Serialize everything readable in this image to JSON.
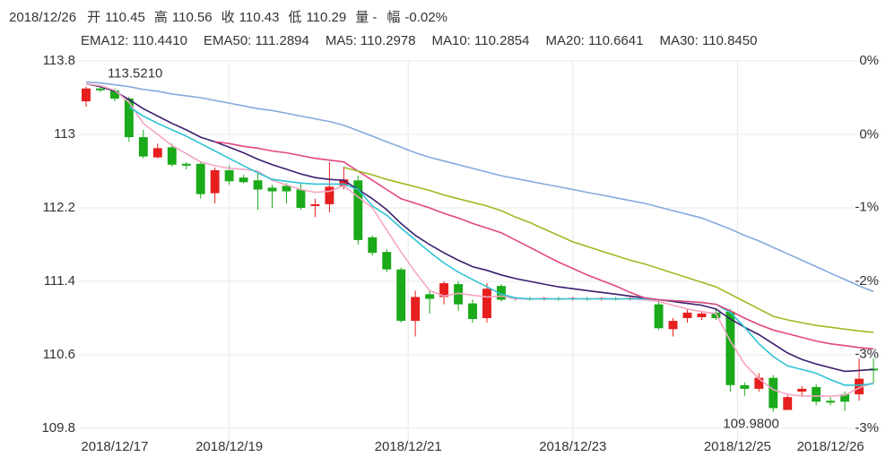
{
  "chart_data": {
    "type": "candlestick",
    "date": "2018/12/26",
    "quote": [
      {
        "label": "开",
        "value": 110.45,
        "color": "#333333"
      },
      {
        "label": "高",
        "value": 110.56,
        "color": "#e61e1e"
      },
      {
        "label": "收",
        "value": 110.43,
        "color": "#1aaa1a"
      },
      {
        "label": "低",
        "value": 110.29,
        "color": "#1aaa1a"
      },
      {
        "label": "量 -"
      },
      {
        "label": "幅",
        "value": {
          "value": -0.02,
          "label": "-0.02%"
        },
        "color": "#1aaa1a"
      }
    ],
    "up_color": "#e61e1e",
    "down_color": "#1aaa1a",
    "xlim": [
      -0.5,
      55.5
    ],
    "xticks": [
      {
        "value": 2,
        "label": "2018/12/17"
      },
      {
        "value": 10,
        "label": "2018/12/19"
      },
      {
        "value": 22.5,
        "label": "2018/12/21"
      },
      {
        "value": 34,
        "label": "2018/12/23"
      },
      {
        "value": 45.5,
        "label": "2018/12/25"
      },
      {
        "value": 52,
        "label": "2018/12/26"
      }
    ],
    "ylim": [
      109.8,
      113.8
    ],
    "yticks": [
      113.8,
      113,
      112.2,
      111.4,
      110.6,
      109.8
    ],
    "y2lim": [
      0.31,
      -3.22
    ],
    "y2ticks": [
      {
        "value": 0.31,
        "label": "0%"
      },
      {
        "value": -0.4,
        "label": "0%"
      },
      {
        "value": -1.1,
        "label": "-1%"
      },
      {
        "value": -1.81,
        "label": "-2%"
      },
      {
        "value": -2.51,
        "label": "-3%"
      },
      {
        "value": -3.22,
        "label": "-3%"
      }
    ],
    "grid": true,
    "annotations": [
      {
        "kind": "max",
        "value": 113.521,
        "label": "113.5210"
      },
      {
        "kind": "min",
        "value": 109.98,
        "label": "109.9800"
      }
    ],
    "open": [
      113.36,
      113.5,
      113.48,
      113.39,
      112.97,
      112.75,
      112.86,
      112.68,
      112.68,
      112.36,
      112.61,
      112.53,
      112.5,
      112.42,
      112.44,
      112.4,
      112.22,
      112.24,
      112.44,
      112.5,
      111.88,
      111.72,
      111.53,
      110.97,
      111.26,
      111.23,
      111.37,
      111.16,
      111.0,
      111.35,
      111.21,
      111.21,
      111.21,
      111.21,
      111.21,
      111.21,
      111.21,
      111.21,
      111.21,
      111.21,
      111.15,
      110.88,
      111.0,
      111.01,
      111.06,
      111.07,
      110.27,
      110.23,
      110.35,
      110.0,
      110.2,
      110.25,
      110.1,
      110.17,
      110.17,
      110.45
    ],
    "high": [
      113.52,
      113.521,
      113.5,
      113.41,
      113.05,
      112.9,
      112.9,
      112.7,
      112.7,
      112.64,
      112.66,
      112.56,
      112.6,
      112.45,
      112.47,
      112.46,
      112.3,
      112.7,
      112.65,
      112.55,
      111.9,
      111.75,
      111.55,
      111.3,
      111.3,
      111.4,
      111.4,
      111.2,
      111.38,
      111.37,
      111.23,
      111.23,
      111.23,
      111.23,
      111.23,
      111.23,
      111.23,
      111.23,
      111.23,
      111.23,
      111.2,
      111.0,
      111.1,
      111.08,
      111.1,
      111.1,
      110.3,
      110.4,
      110.38,
      110.16,
      110.26,
      110.28,
      110.14,
      110.2,
      110.56,
      110.56
    ],
    "low": [
      113.3,
      113.46,
      113.36,
      112.92,
      112.74,
      112.74,
      112.65,
      112.62,
      112.3,
      112.25,
      112.45,
      112.47,
      112.18,
      112.2,
      112.25,
      112.18,
      112.1,
      112.15,
      112.4,
      111.8,
      111.68,
      111.5,
      110.95,
      110.8,
      111.05,
      111.15,
      111.08,
      110.95,
      110.95,
      111.18,
      111.19,
      111.19,
      111.19,
      111.19,
      111.19,
      111.19,
      111.19,
      111.19,
      111.19,
      111.19,
      110.87,
      110.8,
      110.95,
      110.98,
      110.98,
      110.2,
      110.15,
      110.2,
      109.98,
      110.0,
      110.15,
      110.05,
      110.05,
      109.99,
      110.1,
      110.29
    ],
    "close": [
      113.5,
      113.48,
      113.39,
      112.97,
      112.76,
      112.85,
      112.67,
      112.66,
      112.35,
      112.61,
      112.49,
      112.48,
      112.4,
      112.38,
      112.38,
      112.2,
      112.24,
      112.43,
      112.51,
      111.85,
      111.71,
      111.53,
      110.97,
      111.23,
      111.21,
      111.38,
      111.15,
      110.99,
      111.32,
      111.2,
      111.22,
      111.2,
      111.22,
      111.2,
      111.22,
      111.2,
      111.22,
      111.2,
      111.22,
      111.2,
      110.89,
      110.97,
      111.06,
      111.05,
      111.0,
      110.27,
      110.23,
      110.35,
      110.02,
      110.14,
      110.23,
      110.09,
      110.08,
      110.09,
      110.34,
      110.43
    ],
    "series": [
      {
        "name": "EMA12: 110.4410",
        "color": "#3b1e6e",
        "values": [
          113.55,
          113.52,
          113.47,
          113.38,
          113.28,
          113.2,
          113.12,
          113.05,
          112.97,
          112.92,
          112.86,
          112.8,
          112.73,
          112.67,
          112.62,
          112.57,
          112.53,
          112.51,
          112.5,
          112.4,
          112.3,
          112.18,
          112.03,
          111.9,
          111.8,
          111.71,
          111.63,
          111.56,
          111.52,
          111.47,
          111.43,
          111.4,
          111.37,
          111.34,
          111.32,
          111.3,
          111.28,
          111.26,
          111.24,
          111.22,
          111.2,
          111.18,
          111.16,
          111.14,
          111.1,
          110.99,
          110.9,
          110.82,
          110.72,
          110.62,
          110.55,
          110.5,
          110.46,
          110.42,
          110.43,
          110.441
        ]
      },
      {
        "name": "EMA50: 111.2894",
        "color": "#87a9de",
        "values": [
          113.57,
          113.56,
          113.54,
          113.52,
          113.49,
          113.47,
          113.44,
          113.42,
          113.4,
          113.37,
          113.34,
          113.31,
          113.28,
          113.26,
          113.23,
          113.2,
          113.17,
          113.14,
          113.1,
          113.04,
          112.98,
          112.92,
          112.86,
          112.8,
          112.75,
          112.71,
          112.67,
          112.63,
          112.59,
          112.55,
          112.52,
          112.49,
          112.46,
          112.43,
          112.4,
          112.37,
          112.34,
          112.31,
          112.28,
          112.25,
          112.21,
          112.17,
          112.13,
          112.09,
          112.03,
          111.97,
          111.9,
          111.84,
          111.77,
          111.7,
          111.63,
          111.56,
          111.49,
          111.42,
          111.35,
          111.2894
        ]
      },
      {
        "name": "MA5: 110.2978",
        "color": "#f4a6c2",
        "values": [
          113.55,
          113.53,
          113.48,
          113.35,
          113.12,
          113.0,
          112.88,
          112.79,
          112.7,
          112.66,
          112.63,
          112.62,
          112.6,
          112.5,
          112.45,
          112.4,
          112.37,
          112.38,
          112.44,
          112.32,
          112.2,
          111.96,
          111.72,
          111.5,
          111.3,
          111.24,
          111.27,
          111.25,
          111.23,
          111.24,
          111.21,
          111.21,
          111.21,
          111.21,
          111.21,
          111.21,
          111.21,
          111.21,
          111.21,
          111.2,
          111.18,
          111.14,
          111.1,
          111.07,
          111.05,
          110.75,
          110.5,
          110.34,
          110.22,
          110.17,
          110.15,
          110.15,
          110.15,
          110.16,
          110.24,
          110.2978
        ]
      },
      {
        "name": "MA10: 110.2854",
        "color": "#2ec3d6",
        "values": [
          null,
          null,
          null,
          113.3,
          113.2,
          113.12,
          113.05,
          112.98,
          112.9,
          112.82,
          112.74,
          112.66,
          112.58,
          112.51,
          112.49,
          112.47,
          112.46,
          112.46,
          112.46,
          112.4,
          112.22,
          112.12,
          111.98,
          111.85,
          111.72,
          111.6,
          111.5,
          111.42,
          111.34,
          111.26,
          111.22,
          111.21,
          111.21,
          111.21,
          111.21,
          111.21,
          111.21,
          111.21,
          111.21,
          111.21,
          111.2,
          111.19,
          111.18,
          111.17,
          111.15,
          111.06,
          110.9,
          110.72,
          110.58,
          110.48,
          110.44,
          110.4,
          110.33,
          110.27,
          110.27,
          110.2854
        ]
      },
      {
        "name": "MA20: 110.6641",
        "color": "#e2467c",
        "values": [
          null,
          null,
          null,
          null,
          null,
          null,
          null,
          null,
          null,
          112.92,
          112.9,
          112.87,
          112.85,
          112.82,
          112.8,
          112.77,
          112.74,
          112.72,
          112.7,
          112.6,
          112.5,
          112.4,
          112.3,
          112.25,
          112.2,
          112.14,
          112.09,
          112.03,
          111.98,
          111.93,
          111.85,
          111.77,
          111.69,
          111.61,
          111.54,
          111.47,
          111.41,
          111.35,
          111.28,
          111.22,
          111.2,
          111.19,
          111.18,
          111.17,
          111.15,
          111.08,
          111.0,
          110.93,
          110.87,
          110.83,
          110.79,
          110.75,
          110.72,
          110.7,
          110.68,
          110.6641
        ]
      },
      {
        "name": "MA30: 110.8450",
        "color": "#9bbb23",
        "values": [
          null,
          null,
          null,
          null,
          null,
          null,
          null,
          null,
          null,
          null,
          null,
          null,
          null,
          null,
          null,
          null,
          null,
          null,
          112.64,
          112.6,
          112.56,
          112.51,
          112.47,
          112.43,
          112.39,
          112.34,
          112.3,
          112.26,
          112.22,
          112.17,
          112.1,
          112.04,
          111.97,
          111.9,
          111.83,
          111.78,
          111.73,
          111.68,
          111.63,
          111.59,
          111.54,
          111.49,
          111.44,
          111.39,
          111.34,
          111.26,
          111.18,
          111.1,
          111.02,
          110.98,
          110.95,
          110.92,
          110.9,
          110.88,
          110.86,
          110.845
        ]
      }
    ]
  }
}
